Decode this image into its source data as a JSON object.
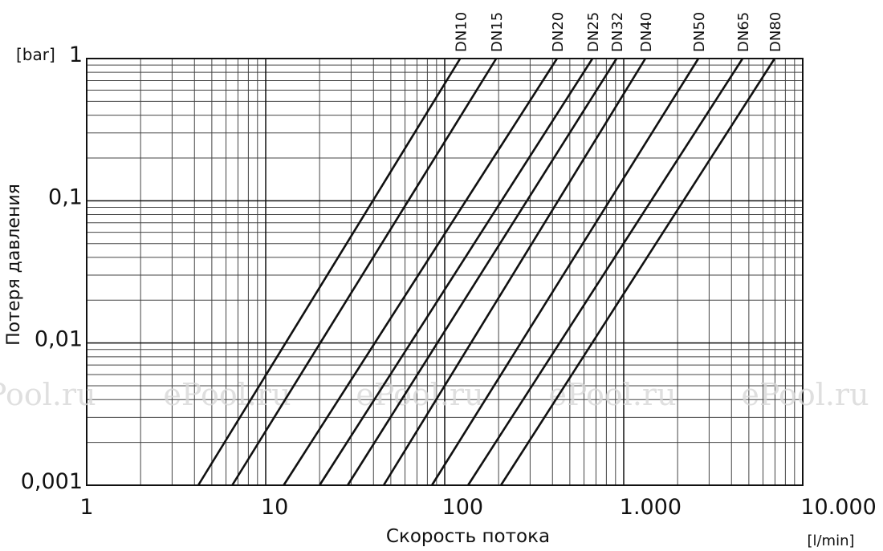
{
  "chart_data": {
    "type": "line",
    "x_label": "Скорость потока",
    "x_unit": "[l/min]",
    "y_label": "Потеря давления",
    "y_unit": "[bar]",
    "log_x": true,
    "log_y": true,
    "grid": true,
    "minor_grid": true,
    "xlim": [
      1,
      10000
    ],
    "ylim": [
      0.001,
      1
    ],
    "xticks": [
      1,
      10,
      100,
      {
        "value": 1000,
        "label": "1.000"
      },
      {
        "value": 10000,
        "label": "10.000"
      }
    ],
    "yticks": [
      {
        "value": 0.001,
        "label": "0,001"
      },
      {
        "value": 0.01,
        "label": "0,01"
      },
      {
        "value": 0.1,
        "label": "0,1"
      },
      1
    ],
    "watermark": "ePool.ru",
    "series": [
      {
        "name": "DN10",
        "color": "#111111",
        "x": [
          4.2,
          122
        ],
        "values": [
          0.001,
          1
        ]
      },
      {
        "name": "DN15",
        "color": "#111111",
        "x": [
          6.5,
          194
        ],
        "values": [
          0.001,
          1
        ]
      },
      {
        "name": "DN20",
        "color": "#111111",
        "x": [
          12.6,
          424
        ],
        "values": [
          0.001,
          1
        ]
      },
      {
        "name": "DN25",
        "color": "#111111",
        "x": [
          20,
          669
        ],
        "values": [
          0.001,
          1
        ]
      },
      {
        "name": "DN32",
        "color": "#111111",
        "x": [
          28.7,
          912
        ],
        "values": [
          0.001,
          1
        ]
      },
      {
        "name": "DN40",
        "color": "#111111",
        "x": [
          45.6,
          1321
        ],
        "values": [
          0.001,
          1
        ]
      },
      {
        "name": "DN50",
        "color": "#111111",
        "x": [
          84.8,
          2612
        ],
        "values": [
          0.001,
          1
        ]
      },
      {
        "name": "DN65",
        "color": "#111111",
        "x": [
          135,
          4613
        ],
        "values": [
          0.001,
          1
        ]
      },
      {
        "name": "DN80",
        "color": "#111111",
        "x": [
          206,
          6966
        ],
        "values": [
          0.001,
          1
        ]
      }
    ]
  }
}
